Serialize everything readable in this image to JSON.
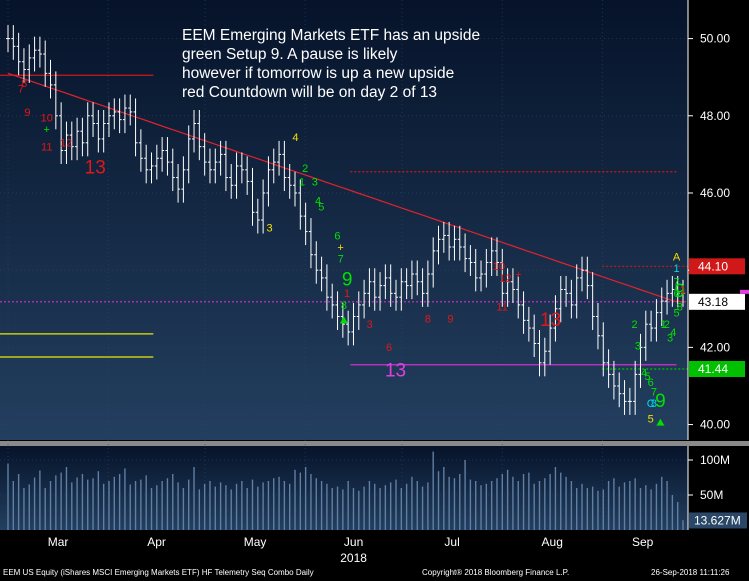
{
  "annotation": {
    "lines": [
      "EEM Emerging Markets ETF has an upside",
      "green Setup 9.  A pause is likely",
      "however if tomorrow is up a new upside",
      "red Countdown will be on day 2 of 13"
    ]
  },
  "footer": {
    "left": "EEM US Equity (iShares MSCI Emerging Markets ETF) HF Telemetry Seq Combo  Daily",
    "center": "Copyright® 2018 Bloomberg Finance L.P.",
    "right": "26-Sep-2018 11:11:26"
  },
  "colors": {
    "bg_top": "#06132a",
    "bg_bottom": "#233f5f",
    "price_bar": "#ffffff",
    "moving_avg": "#e0232d",
    "setup_green": "#00e000",
    "countdown_red": "#e01818",
    "yellow": "#f0e000",
    "magenta": "#e040e0",
    "cyan": "#00d8e8"
  },
  "chart_data": [
    {
      "type": "ohlc",
      "y_axis": {
        "ticks": [
          "50.00",
          "48.00",
          "46.00",
          "44.00",
          "42.00",
          "40.00"
        ],
        "ylim": [
          39.6,
          51.0
        ]
      },
      "x_axis": {
        "months": [
          "Mar",
          "Apr",
          "May",
          "Jun",
          "Jul",
          "Aug",
          "Sep"
        ],
        "year_label": "2018"
      },
      "ohlc": {
        "date_start": "2018-03-01",
        "date_end": "2018-09-26",
        "close": [
          50.0,
          49.8,
          49.4,
          49.2,
          49.5,
          49.7,
          49.6,
          49.1,
          48.8,
          48.0,
          47.1,
          47.5,
          47.2,
          47.6,
          47.3,
          48.0,
          47.8,
          47.4,
          47.8,
          48.0,
          48.1,
          47.9,
          48.2,
          48.1,
          47.3,
          46.9,
          46.6,
          46.7,
          46.9,
          47.1,
          46.8,
          46.4,
          46.1,
          46.6,
          47.4,
          47.8,
          47.2,
          46.8,
          46.6,
          46.8,
          47.0,
          46.4,
          46.2,
          46.7,
          46.6,
          46.3,
          45.5,
          45.3,
          46.0,
          46.6,
          46.8,
          47.0,
          46.4,
          46.2,
          46.0,
          45.4,
          45.0,
          44.4,
          44.0,
          43.8,
          43.3,
          43.1,
          42.8,
          42.6,
          42.4,
          42.8,
          43.1,
          43.4,
          43.7,
          43.3,
          43.6,
          43.8,
          43.4,
          43.3,
          43.7,
          43.6,
          43.9,
          43.7,
          43.4,
          43.9,
          44.5,
          44.8,
          44.9,
          44.6,
          44.8,
          44.6,
          44.3,
          44.2,
          43.8,
          43.9,
          44.2,
          44.5,
          44.2,
          43.4,
          43.7,
          43.5,
          43.1,
          42.7,
          42.5,
          42.1,
          41.6,
          41.9,
          42.5,
          43.0,
          43.5,
          43.4,
          43.1,
          43.8,
          44.0,
          43.6,
          42.8,
          42.3,
          41.6,
          41.3,
          41.0,
          40.8,
          40.6,
          40.6,
          41.3,
          42.0,
          42.6,
          42.5,
          42.9,
          43.2,
          43.4,
          43.5,
          43.4,
          43.4
        ],
        "note": "OHLC bars are reconstructed from the rendered image; closes are rounded approximations."
      },
      "moving_average": {
        "name": "",
        "values": [
          49.1,
          49.0,
          48.9,
          48.8,
          48.7,
          48.6,
          48.5,
          48.4,
          48.3,
          48.2,
          48.1,
          48.0,
          47.9,
          47.8,
          47.7,
          47.6,
          47.5,
          47.4,
          47.3,
          47.2,
          47.1,
          47.0,
          46.9,
          46.8,
          46.7,
          46.6,
          46.5,
          46.4,
          46.3,
          46.2,
          46.1,
          46.0,
          45.9,
          45.8,
          45.7,
          45.6,
          45.5,
          45.4,
          45.3,
          45.2,
          45.1,
          45.0,
          44.9,
          44.8,
          44.7,
          44.6,
          44.5,
          44.4,
          44.3,
          44.2,
          44.1,
          44.0,
          43.9,
          43.8,
          43.7,
          43.6,
          43.5,
          43.4,
          43.3,
          43.2,
          43.18
        ]
      },
      "reference_lines": [
        {
          "value": 49.05,
          "color": "#d01818",
          "style": "solid",
          "span": "left"
        },
        {
          "value": 46.55,
          "color": "#d01818",
          "style": "dotted",
          "span": "middle"
        },
        {
          "value": 44.1,
          "color": "#d01818",
          "style": "dotted",
          "span": "right"
        },
        {
          "value": 43.18,
          "color": "#d030d0",
          "style": "dotted",
          "span": "full"
        },
        {
          "value": 42.35,
          "color": "#e8e800",
          "style": "solid",
          "span": "left"
        },
        {
          "value": 41.75,
          "color": "#e8e800",
          "style": "solid",
          "span": "left"
        },
        {
          "value": 41.55,
          "color": "#d030d0",
          "style": "solid",
          "span": "middle"
        },
        {
          "value": 41.44,
          "color": "#00c000",
          "style": "dotted",
          "span": "right"
        }
      ],
      "value_tags": [
        {
          "label": "44.10",
          "bg": "#d01818",
          "fg": "#ffffff",
          "value": 44.1
        },
        {
          "label": "43.18",
          "bg": "#ffffff",
          "fg": "#000000",
          "value": 43.18
        },
        {
          "label": "41.44",
          "bg": "#00c000",
          "fg": "#ffffff",
          "value": 41.44
        }
      ],
      "sequential_labels": [
        {
          "text": "7",
          "color": "#e01818",
          "date": "2018-03-05",
          "price": 48.6,
          "size": "small"
        },
        {
          "text": "8",
          "color": "#e01818",
          "date": "2018-03-06",
          "price": 48.75,
          "size": "small"
        },
        {
          "text": "9",
          "color": "#e01818",
          "date": "2018-03-07",
          "price": 48.0,
          "size": "small"
        },
        {
          "text": "10",
          "color": "#e01818",
          "date": "2018-03-13",
          "price": 47.85,
          "size": "small"
        },
        {
          "text": "+",
          "color": "#00e000",
          "date": "2018-03-13",
          "price": 47.55,
          "size": "small"
        },
        {
          "text": "11",
          "color": "#e01818",
          "date": "2018-03-13",
          "price": 47.1,
          "size": "small"
        },
        {
          "text": "12",
          "color": "#e01818",
          "date": "2018-03-19",
          "price": 47.2,
          "size": "small"
        },
        {
          "text": "13",
          "color": "#e01818",
          "date": "2018-03-28",
          "price": 46.5,
          "size": "large"
        },
        {
          "text": "4",
          "color": "#f0e000",
          "date": "2018-05-29",
          "price": 47.35,
          "size": "small"
        },
        {
          "text": "1",
          "color": "#00e000",
          "date": "2018-05-31",
          "price": 46.2,
          "size": "small"
        },
        {
          "text": "2",
          "color": "#00e000",
          "date": "2018-06-01",
          "price": 46.55,
          "size": "small"
        },
        {
          "text": "3",
          "color": "#00e000",
          "date": "2018-06-04",
          "price": 46.2,
          "size": "small"
        },
        {
          "text": "4",
          "color": "#00e000",
          "date": "2018-06-05",
          "price": 45.7,
          "size": "small"
        },
        {
          "text": "5",
          "color": "#00e000",
          "date": "2018-06-06",
          "price": 45.55,
          "size": "small"
        },
        {
          "text": "3",
          "color": "#f0e000",
          "date": "2018-05-21",
          "price": 45.0,
          "size": "small"
        },
        {
          "text": "6",
          "color": "#00e000",
          "date": "2018-06-11",
          "price": 44.8,
          "size": "small"
        },
        {
          "text": "+",
          "color": "#f0e000",
          "date": "2018-06-12",
          "price": 44.5,
          "size": "small"
        },
        {
          "text": "7",
          "color": "#00e000",
          "date": "2018-06-12",
          "price": 44.2,
          "size": "small"
        },
        {
          "text": "9",
          "color": "#00e000",
          "date": "2018-06-14",
          "price": 43.6,
          "size": "large"
        },
        {
          "text": "1",
          "color": "#e01818",
          "date": "2018-06-14",
          "price": 43.3,
          "size": "small"
        },
        {
          "text": "8",
          "color": "#00e000",
          "date": "2018-06-13",
          "price": 43.0,
          "size": "small"
        },
        {
          "text": "3",
          "color": "#e01818",
          "date": "2018-06-21",
          "price": 42.5,
          "size": "small"
        },
        {
          "text": "6",
          "color": "#e01818",
          "date": "2018-06-27",
          "price": 41.9,
          "size": "small"
        },
        {
          "text": "13",
          "color": "#e040e0",
          "date": "2018-06-29",
          "price": 41.25,
          "size": "large"
        },
        {
          "text": "8",
          "color": "#e01818",
          "date": "2018-07-09",
          "price": 42.65,
          "size": "small"
        },
        {
          "text": "9",
          "color": "#e01818",
          "date": "2018-07-16",
          "price": 42.65,
          "size": "small"
        },
        {
          "text": "10",
          "color": "#e01818",
          "date": "2018-07-31",
          "price": 44.0,
          "size": "small"
        },
        {
          "text": "12",
          "color": "#e01818",
          "date": "2018-08-02",
          "price": 43.7,
          "size": "small"
        },
        {
          "text": "+",
          "color": "#e01818",
          "date": "2018-08-06",
          "price": 43.8,
          "size": "small"
        },
        {
          "text": "11",
          "color": "#e01818",
          "date": "2018-08-01",
          "price": 42.95,
          "size": "small"
        },
        {
          "text": "13",
          "color": "#e01818",
          "date": "2018-08-16",
          "price": 42.55,
          "size": "large"
        },
        {
          "text": "2",
          "color": "#00e000",
          "date": "2018-09-11",
          "price": 42.5,
          "size": "small"
        },
        {
          "text": "3",
          "color": "#00e000",
          "date": "2018-09-12",
          "price": 41.95,
          "size": "small"
        },
        {
          "text": "4",
          "color": "#00e000",
          "date": "2018-09-14",
          "price": 41.25,
          "size": "small"
        },
        {
          "text": "5",
          "color": "#00e000",
          "date": "2018-09-15",
          "price": 41.15,
          "size": "small"
        },
        {
          "text": "6",
          "color": "#00e000",
          "date": "2018-09-16",
          "price": 41.0,
          "size": "small"
        },
        {
          "text": "7",
          "color": "#00e000",
          "date": "2018-09-17",
          "price": 40.75,
          "size": "small"
        },
        {
          "text": "C",
          "color": "#00d8e8",
          "date": "2018-09-16",
          "price": 40.45,
          "size": "small"
        },
        {
          "text": "8",
          "color": "#00d8e8",
          "date": "2018-09-17",
          "price": 40.45,
          "size": "small"
        },
        {
          "text": "9",
          "color": "#00e000",
          "date": "2018-09-19",
          "price": 40.45,
          "size": "large"
        },
        {
          "text": "5",
          "color": "#f0e000",
          "date": "2018-09-16",
          "price": 40.05,
          "size": "small"
        },
        {
          "text": "1",
          "color": "#00e000",
          "date": "2018-09-20",
          "price": 42.5,
          "size": "small"
        },
        {
          "text": "2",
          "color": "#00e000",
          "date": "2018-09-21",
          "price": 42.5,
          "size": "small"
        },
        {
          "text": "3",
          "color": "#00e000",
          "date": "2018-09-22",
          "price": 42.15,
          "size": "small"
        },
        {
          "text": "4",
          "color": "#00e000",
          "date": "2018-09-23",
          "price": 42.3,
          "size": "small"
        },
        {
          "text": "5",
          "color": "#00e000",
          "date": "2018-09-24",
          "price": 42.8,
          "size": "small"
        },
        {
          "text": "6",
          "color": "#00e000",
          "date": "2018-09-24",
          "price": 43.3,
          "size": "small"
        },
        {
          "text": "7",
          "color": "#00e000",
          "date": "2018-09-24",
          "price": 43.6,
          "size": "small"
        },
        {
          "text": "8",
          "color": "#00e000",
          "date": "2018-09-25",
          "price": 42.95,
          "size": "small"
        },
        {
          "text": "9",
          "color": "#00e000",
          "date": "2018-09-25",
          "price": 43.3,
          "size": "large"
        },
        {
          "text": "1",
          "color": "#e01818",
          "date": "2018-09-26",
          "price": 43.4,
          "size": "small"
        },
        {
          "text": "A",
          "color": "#f0e000",
          "date": "2018-09-24",
          "price": 44.25,
          "size": "small"
        },
        {
          "text": "1",
          "color": "#00d8e8",
          "date": "2018-09-24",
          "price": 43.95,
          "size": "small"
        }
      ],
      "arrows": [
        {
          "direction": "up",
          "color": "#00e000",
          "date": "2018-06-13",
          "price": 42.7
        },
        {
          "direction": "up",
          "color": "#00e000",
          "date": "2018-09-19",
          "price": 40.05
        }
      ]
    },
    {
      "type": "bar",
      "name": "",
      "y_axis": {
        "ticks": [
          "100M",
          "50M"
        ]
      },
      "last_value_label": "13.627M",
      "values_millions": [
        95,
        70,
        80,
        60,
        65,
        75,
        85,
        60,
        70,
        78,
        82,
        90,
        68,
        75,
        80,
        72,
        74,
        84,
        66,
        70,
        76,
        80,
        88,
        65,
        70,
        72,
        78,
        60,
        64,
        70,
        74,
        80,
        68,
        60,
        72,
        90,
        58,
        66,
        70,
        62,
        68,
        64,
        58,
        66,
        70,
        60,
        72,
        62,
        68,
        70,
        74,
        76,
        70,
        66,
        86,
        82,
        90,
        80,
        74,
        70,
        66,
        60,
        62,
        58,
        70,
        60,
        56,
        62,
        70,
        66,
        60,
        64,
        68,
        72,
        60,
        66,
        76,
        70,
        62,
        68,
        112,
        84,
        90,
        76,
        74,
        80,
        100,
        72,
        70,
        64,
        66,
        70,
        74,
        80,
        86,
        76,
        70,
        80,
        82,
        66,
        70,
        74,
        80,
        90,
        82,
        76,
        70,
        60,
        66,
        60,
        62,
        56,
        58,
        70,
        74,
        62,
        68,
        70,
        74,
        60,
        64,
        58,
        66,
        76,
        70,
        50,
        40,
        14
      ]
    }
  ]
}
